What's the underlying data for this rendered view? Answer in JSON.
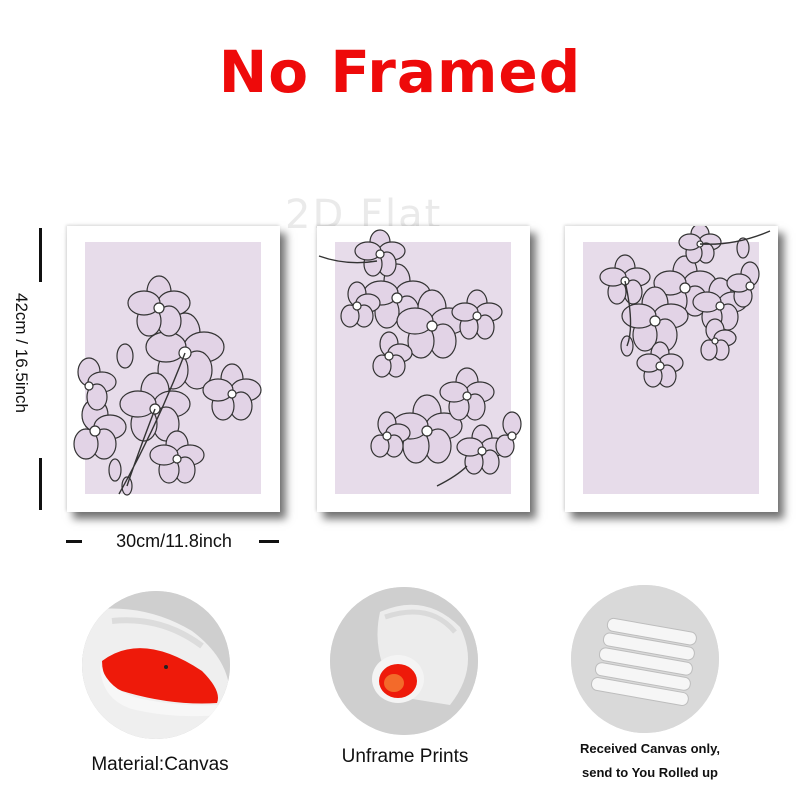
{
  "title": "No Framed",
  "watermark": "2D Flat",
  "dimensions": {
    "height_label": "42cm / 16.5inch",
    "width_label": "30cm/11.8inch"
  },
  "colors": {
    "title": "#ee0a0a",
    "print_background": "#e7dcea",
    "canvas_back": "#ee1a0a"
  },
  "panels": [
    {
      "name": "panel-left",
      "motif": "orchid-branch-icon"
    },
    {
      "name": "panel-middle",
      "motif": "orchid-cluster-icon"
    },
    {
      "name": "panel-right",
      "motif": "orchid-cluster-icon"
    }
  ],
  "features": [
    {
      "caption": "Material:Canvas",
      "icon": "rolled-canvas-icon"
    },
    {
      "caption": "Unframe  Prints",
      "icon": "canvas-roll-icon"
    },
    {
      "caption_line1": "Received Canvas only,",
      "caption_line2": "send to You Rolled up",
      "icon": "rolled-tubes-icon"
    }
  ]
}
